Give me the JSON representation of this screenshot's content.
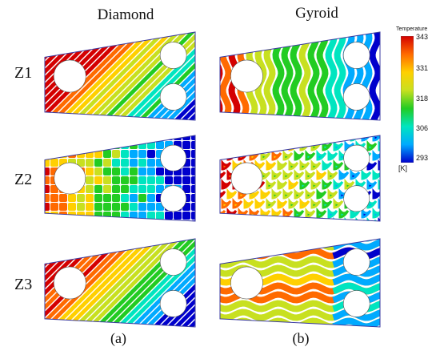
{
  "columns": [
    "Diamond",
    "Gyroid"
  ],
  "rows": [
    "Z1",
    "Z2",
    "Z3"
  ],
  "sublabels": [
    "(a)",
    "(b)"
  ],
  "colorbar": {
    "title": "Temperature",
    "ticks": [
      "343",
      "331",
      "318",
      "306",
      "293"
    ],
    "unit": "[K]",
    "colors": [
      "#0000cc",
      "#00aaff",
      "#00e5c0",
      "#22cc22",
      "#c8e020",
      "#ffd000",
      "#ff6a00",
      "#d40000"
    ]
  },
  "panels": [
    {
      "structure": "diamond",
      "zone": "Z1"
    },
    {
      "structure": "gyroid",
      "zone": "Z1"
    },
    {
      "structure": "diamond",
      "zone": "Z2"
    },
    {
      "structure": "gyroid",
      "zone": "Z2"
    },
    {
      "structure": "diamond",
      "zone": "Z3"
    },
    {
      "structure": "gyroid",
      "zone": "Z3"
    }
  ]
}
